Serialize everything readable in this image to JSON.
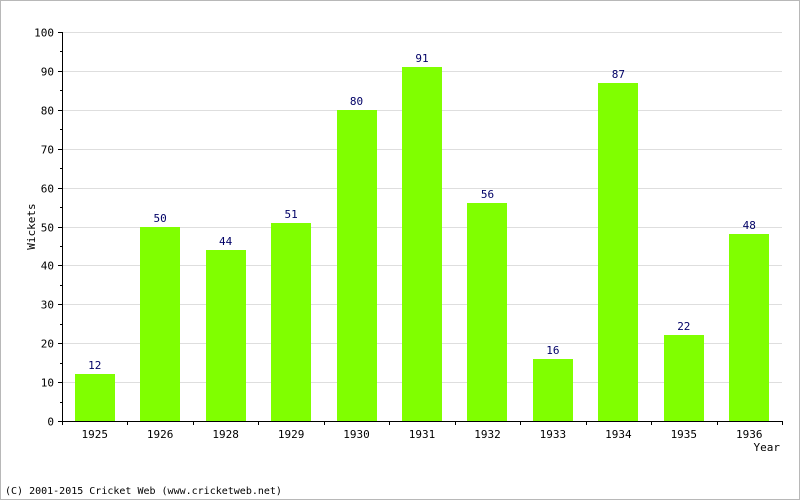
{
  "chart_data": {
    "type": "bar",
    "title": "",
    "xlabel": "Year",
    "ylabel": "Wickets",
    "categories": [
      "1925",
      "1926",
      "1928",
      "1929",
      "1930",
      "1931",
      "1932",
      "1933",
      "1934",
      "1935",
      "1936"
    ],
    "values": [
      12,
      50,
      44,
      51,
      80,
      91,
      56,
      16,
      87,
      22,
      48
    ],
    "ylim": [
      0,
      100
    ],
    "yticks": [
      0,
      10,
      20,
      30,
      40,
      50,
      60,
      70,
      80,
      90,
      100
    ],
    "grid": true,
    "legend": "none",
    "data_labels": true
  },
  "colors": {
    "bar": "#80ff00",
    "grid": "#dedede",
    "axis": "#000000",
    "value_label": "#000066",
    "frame": "#b8b8b8"
  },
  "footer": {
    "copyright": "(C) 2001-2015 Cricket Web (www.cricketweb.net)"
  }
}
